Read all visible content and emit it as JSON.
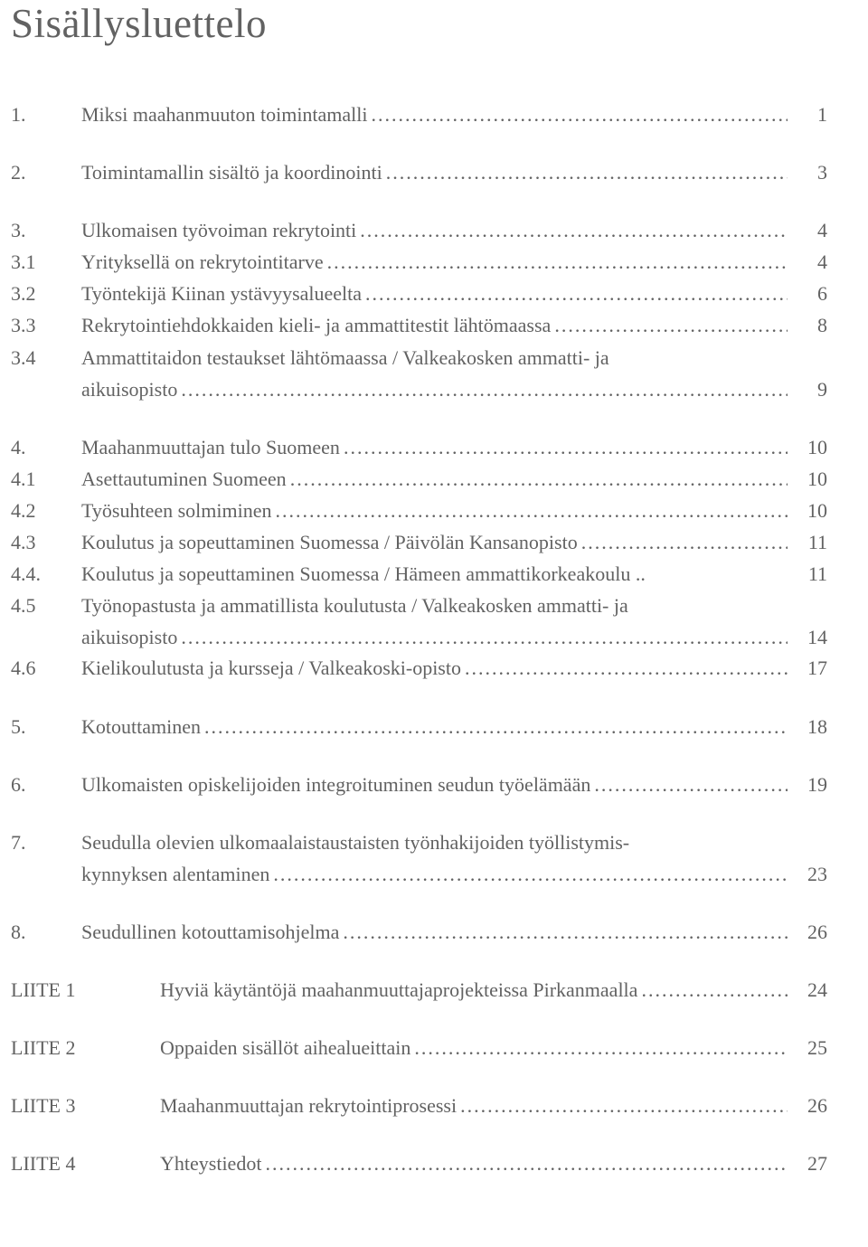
{
  "title": "Sisällysluettelo",
  "dots": "................................................................................................................................................",
  "group1": [
    {
      "num": "1.",
      "title": "Miksi maahanmuuton toimintamalli",
      "page": "1"
    }
  ],
  "group2": [
    {
      "num": "2.",
      "title": "Toimintamallin sisältö ja koordinointi",
      "page": "3"
    }
  ],
  "group3": [
    {
      "num": "3.",
      "title": "Ulkomaisen työvoiman rekrytointi",
      "page": "4"
    },
    {
      "num": "3.1",
      "title": "Yrityksellä on rekrytointitarve",
      "page": "4"
    },
    {
      "num": "3.2",
      "title": "Työntekijä Kiinan ystävyysalueelta",
      "page": "6"
    },
    {
      "num": "3.3",
      "title": "Rekrytointiehdokkaiden kieli- ja ammattitestit lähtömaassa",
      "page": "8"
    }
  ],
  "row34": {
    "num": "3.4",
    "line1": "Ammattitaidon testaukset lähtömaassa / Valkeakosken ammatti- ja",
    "line2": "aikuisopisto",
    "page": "9"
  },
  "group4a": [
    {
      "num": "4.",
      "title": "Maahanmuuttajan tulo Suomeen",
      "page": "10"
    },
    {
      "num": "4.1",
      "title": "Asettautuminen Suomeen",
      "page": "10"
    },
    {
      "num": "4.2",
      "title": "Työsuhteen solmiminen",
      "page": "10"
    },
    {
      "num": "4.3",
      "title": "Koulutus ja sopeuttaminen Suomessa / Päivölän Kansanopisto",
      "page": "11"
    },
    {
      "num": "4.4.",
      "title": "Koulutus ja sopeuttaminen Suomessa  / Hämeen ammattikorkeakoulu ..",
      "page": "11",
      "nodots": true
    }
  ],
  "row45": {
    "num": "4.5",
    "line1": "Työnopastusta ja ammatillista koulutusta / Valkeakosken ammatti- ja",
    "line2": "aikuisopisto",
    "page": "14"
  },
  "group4b": [
    {
      "num": "4.6",
      "title": "Kielikoulutusta ja kursseja / Valkeakoski-opisto",
      "page": "17"
    }
  ],
  "group5": [
    {
      "num": "5.",
      "title": "Kotouttaminen",
      "page": "18"
    }
  ],
  "group6": [
    {
      "num": "6.",
      "title": "Ulkomaisten opiskelijoiden integroituminen seudun työelämään",
      "page": "19"
    }
  ],
  "row7": {
    "num": "7.",
    "line1": "Seudulla olevien ulkomaalaistaustaisten työnhakijoiden työllistymis-",
    "line2": "kynnyksen alentaminen",
    "page": "23"
  },
  "group8": [
    {
      "num": "8.",
      "title": "Seudullinen kotouttamisohjelma",
      "page": "26"
    }
  ],
  "appendices": [
    {
      "label": "LIITE 1",
      "title": "Hyviä käytäntöjä maahanmuuttajaprojekteissa Pirkanmaalla",
      "page": "24"
    },
    {
      "label": "LIITE 2",
      "title": "Oppaiden sisällöt aihealueittain",
      "page": "25"
    },
    {
      "label": "LIITE 3",
      "title": "Maahanmuuttajan rekrytointiprosessi",
      "page": "26"
    },
    {
      "label": "LIITE 4",
      "title": "Yhteystiedot",
      "page": "27"
    }
  ]
}
